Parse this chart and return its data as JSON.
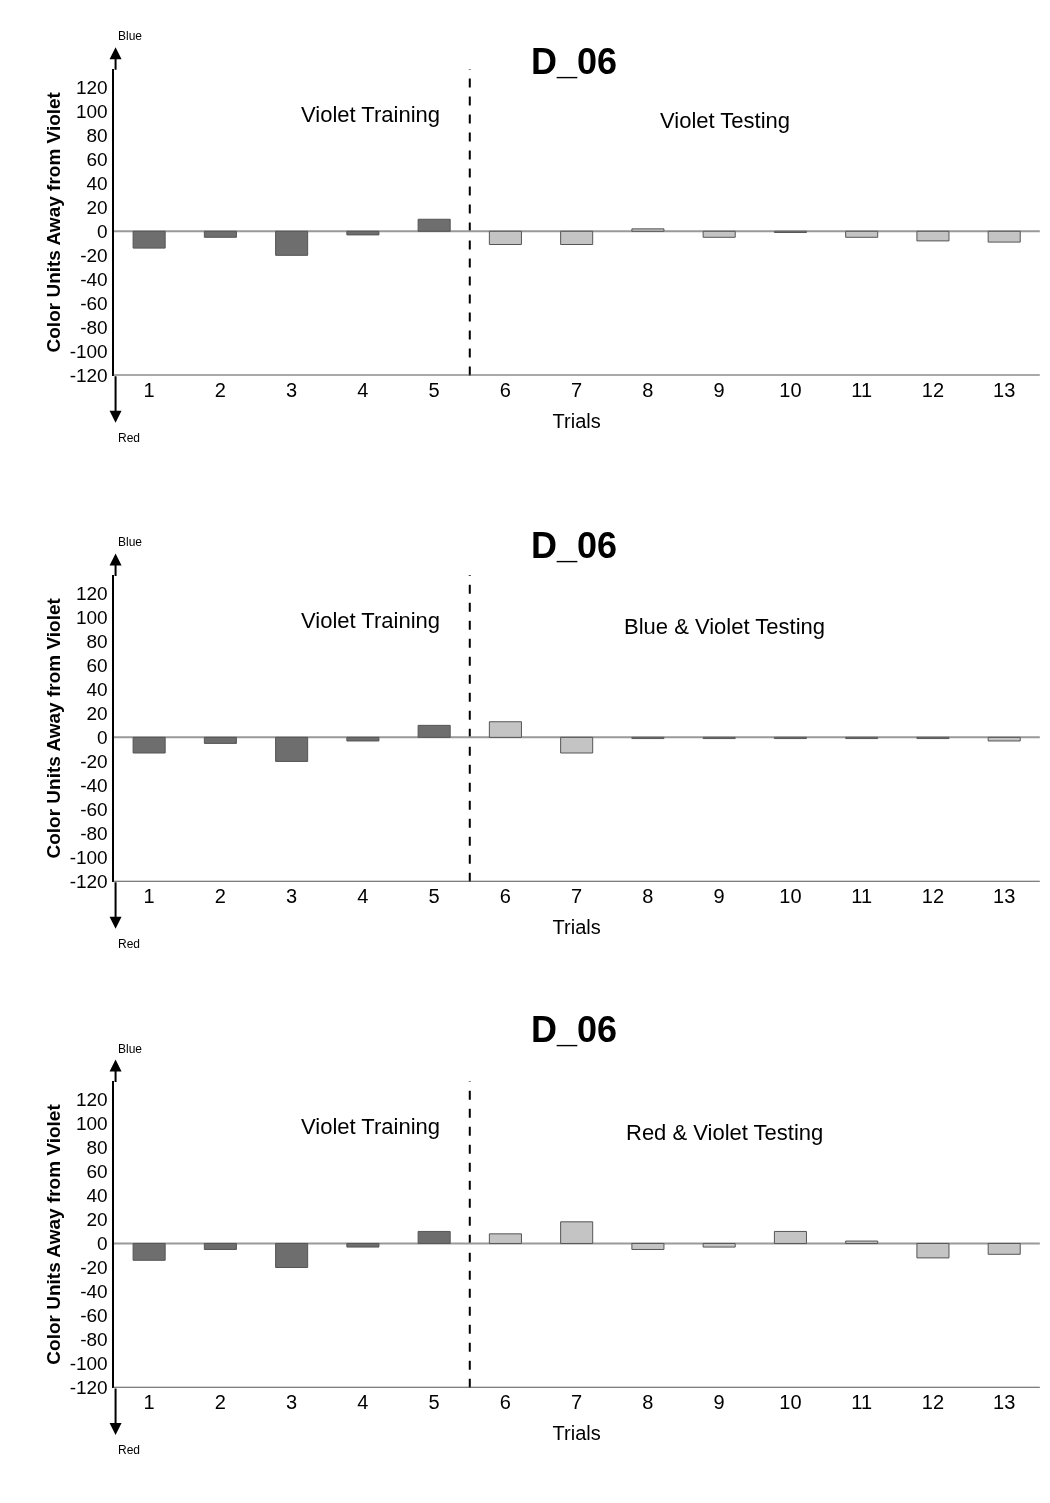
{
  "chart_data": [
    {
      "type": "bar",
      "title": "D_06",
      "xlabel": "Trials",
      "ylabel": "Color Units Away from Violet",
      "x": [
        1,
        2,
        3,
        4,
        5,
        6,
        7,
        8,
        9,
        10,
        11,
        12,
        13
      ],
      "xlim": [
        0.5,
        13.5
      ],
      "xticks": [
        1,
        2,
        3,
        4,
        5,
        6,
        7,
        8,
        9,
        10,
        11,
        12,
        13
      ],
      "ylim": [
        -120,
        135
      ],
      "yticks": [
        -120,
        -100,
        -80,
        -60,
        -40,
        -20,
        0,
        20,
        40,
        60,
        80,
        100,
        120
      ],
      "values": [
        -14,
        -5,
        -20,
        -3,
        10,
        -11,
        -11,
        2,
        -5,
        -1,
        -5,
        -8,
        -9
      ],
      "colors": [
        "#6e6e6e",
        "#6e6e6e",
        "#6e6e6e",
        "#6e6e6e",
        "#6e6e6e",
        "#c4c4c4",
        "#c4c4c4",
        "#c4c4c4",
        "#c4c4c4",
        "#c4c4c4",
        "#c4c4c4",
        "#c4c4c4",
        "#c4c4c4"
      ],
      "ref_lines": [
        {
          "axis": "x",
          "value": 5.5,
          "label": null,
          "color": "#000000",
          "line_style": "dashed"
        },
        {
          "axis": "y",
          "value": 0,
          "label": null,
          "color": "#999999",
          "line_style": "solid"
        }
      ],
      "annotations": [
        "Violet Training",
        "Violet Testing",
        "Blue",
        "Red"
      ],
      "grid": false
    },
    {
      "type": "bar",
      "title": "D_06",
      "xlabel": "Trials",
      "ylabel": "Color Units Away from Violet",
      "x": [
        1,
        2,
        3,
        4,
        5,
        6,
        7,
        8,
        9,
        10,
        11,
        12,
        13
      ],
      "xlim": [
        0.5,
        13.5
      ],
      "xticks": [
        1,
        2,
        3,
        4,
        5,
        6,
        7,
        8,
        9,
        10,
        11,
        12,
        13
      ],
      "ylim": [
        -120,
        135
      ],
      "yticks": [
        -120,
        -100,
        -80,
        -60,
        -40,
        -20,
        0,
        20,
        40,
        60,
        80,
        100,
        120
      ],
      "values": [
        -13,
        -5,
        -20,
        -3,
        10,
        13,
        -13,
        -1,
        -1,
        -1,
        -1,
        -1,
        -3
      ],
      "colors": [
        "#6e6e6e",
        "#6e6e6e",
        "#6e6e6e",
        "#6e6e6e",
        "#6e6e6e",
        "#c4c4c4",
        "#c4c4c4",
        "#c4c4c4",
        "#c4c4c4",
        "#c4c4c4",
        "#c4c4c4",
        "#c4c4c4",
        "#c4c4c4"
      ],
      "ref_lines": [
        {
          "axis": "x",
          "value": 5.5,
          "label": null,
          "color": "#000000",
          "line_style": "dashed"
        },
        {
          "axis": "y",
          "value": 0,
          "label": null,
          "color": "#999999",
          "line_style": "solid"
        }
      ],
      "annotations": [
        "Violet Training",
        "Blue & Violet Testing",
        "Blue",
        "Red"
      ],
      "grid": false
    },
    {
      "type": "bar",
      "title": "D_06",
      "xlabel": "Trials",
      "ylabel": "Color Units Away from Violet",
      "x": [
        1,
        2,
        3,
        4,
        5,
        6,
        7,
        8,
        9,
        10,
        11,
        12,
        13
      ],
      "xlim": [
        0.5,
        13.5
      ],
      "xticks": [
        1,
        2,
        3,
        4,
        5,
        6,
        7,
        8,
        9,
        10,
        11,
        12,
        13
      ],
      "ylim": [
        -120,
        135
      ],
      "yticks": [
        -120,
        -100,
        -80,
        -60,
        -40,
        -20,
        0,
        20,
        40,
        60,
        80,
        100,
        120
      ],
      "values": [
        -14,
        -5,
        -20,
        -3,
        10,
        8,
        18,
        -5,
        -3,
        10,
        2,
        -12,
        -9
      ],
      "colors": [
        "#6e6e6e",
        "#6e6e6e",
        "#6e6e6e",
        "#6e6e6e",
        "#6e6e6e",
        "#c4c4c4",
        "#c4c4c4",
        "#c4c4c4",
        "#c4c4c4",
        "#c4c4c4",
        "#c4c4c4",
        "#c4c4c4",
        "#c4c4c4"
      ],
      "ref_lines": [
        {
          "axis": "x",
          "value": 5.5,
          "label": null,
          "color": "#000000",
          "line_style": "dashed"
        },
        {
          "axis": "y",
          "value": 0,
          "label": null,
          "color": "#999999",
          "line_style": "solid"
        }
      ],
      "annotations": [
        "Violet Training",
        "Red & Violet Testing",
        "Blue",
        "Red"
      ],
      "grid": false
    }
  ]
}
